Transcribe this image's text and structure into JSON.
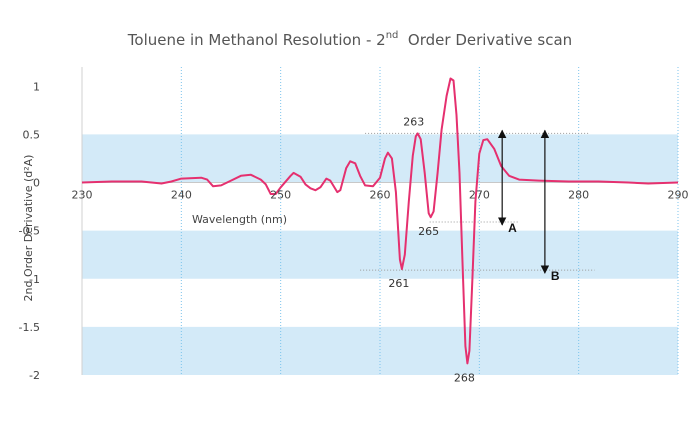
{
  "chart_data": {
    "type": "line",
    "title": "Toluene in Methanol Resolution - 2",
    "title_superscript": "nd",
    "title_suffix": "Order Derivative scan",
    "xlabel": "Wavelength (nm)",
    "ylabel": "2nd Order Derivative (d²A)",
    "xlim": [
      230,
      290
    ],
    "ylim": [
      -2,
      1.2
    ],
    "x_ticks": [
      "230",
      "240",
      "250",
      "260",
      "270",
      "280",
      "290"
    ],
    "y_ticks": [
      "1",
      "0.5",
      "0",
      "-0.5",
      "-1",
      "-1.5",
      "-2"
    ],
    "y_tick_values": [
      1,
      0.5,
      0,
      -0.5,
      -1,
      -1.5,
      -2
    ],
    "bands": [
      [
        0,
        0.5
      ],
      [
        -1,
        -0.5
      ],
      [
        -2,
        -1.5
      ]
    ],
    "grid": "vertical dotted",
    "line_color": "#e5306f",
    "band_color": "#d3eaf8",
    "series": [
      {
        "points": [
          [
            230,
            0
          ],
          [
            233,
            0.01
          ],
          [
            236,
            0.01
          ],
          [
            238,
            -0.01
          ],
          [
            239,
            0.01
          ],
          [
            240,
            0.04
          ],
          [
            242,
            0.05
          ],
          [
            242.6,
            0.03
          ],
          [
            243.2,
            -0.04
          ],
          [
            244,
            -0.03
          ],
          [
            245,
            0.02
          ],
          [
            246,
            0.07
          ],
          [
            247,
            0.08
          ],
          [
            248,
            0.03
          ],
          [
            248.5,
            -0.02
          ],
          [
            249,
            -0.12
          ],
          [
            249.5,
            -0.12
          ],
          [
            250,
            -0.05
          ],
          [
            251,
            0.07
          ],
          [
            251.3,
            0.1
          ],
          [
            252,
            0.06
          ],
          [
            252.5,
            -0.02
          ],
          [
            253,
            -0.06
          ],
          [
            253.5,
            -0.08
          ],
          [
            254,
            -0.05
          ],
          [
            254.6,
            0.04
          ],
          [
            255,
            0.02
          ],
          [
            255.7,
            -0.1
          ],
          [
            256,
            -0.08
          ],
          [
            256.6,
            0.15
          ],
          [
            257,
            0.22
          ],
          [
            257.5,
            0.2
          ],
          [
            258,
            0.07
          ],
          [
            258.5,
            -0.03
          ],
          [
            259.3,
            -0.04
          ],
          [
            260,
            0.05
          ],
          [
            260.5,
            0.25
          ],
          [
            260.8,
            0.31
          ],
          [
            261.2,
            0.25
          ],
          [
            261.6,
            -0.1
          ],
          [
            262,
            -0.8
          ],
          [
            262.2,
            -0.9
          ],
          [
            262.5,
            -0.75
          ],
          [
            262.9,
            -0.2
          ],
          [
            263.3,
            0.28
          ],
          [
            263.6,
            0.48
          ],
          [
            263.8,
            0.51
          ],
          [
            264.1,
            0.45
          ],
          [
            264.5,
            0.1
          ],
          [
            264.9,
            -0.32
          ],
          [
            265.1,
            -0.36
          ],
          [
            265.4,
            -0.3
          ],
          [
            265.8,
            0.1
          ],
          [
            266.2,
            0.55
          ],
          [
            266.7,
            0.9
          ],
          [
            267.1,
            1.08
          ],
          [
            267.4,
            1.06
          ],
          [
            267.7,
            0.7
          ],
          [
            268,
            0.1
          ],
          [
            268.3,
            -0.8
          ],
          [
            268.6,
            -1.7
          ],
          [
            268.8,
            -1.88
          ],
          [
            269,
            -1.75
          ],
          [
            269.3,
            -1.0
          ],
          [
            269.6,
            -0.2
          ],
          [
            270,
            0.3
          ],
          [
            270.4,
            0.44
          ],
          [
            270.8,
            0.45
          ],
          [
            271.5,
            0.35
          ],
          [
            272.2,
            0.17
          ],
          [
            273,
            0.07
          ],
          [
            274,
            0.03
          ],
          [
            276,
            0.02
          ],
          [
            279,
            0.01
          ],
          [
            282,
            0.01
          ],
          [
            285,
            0.0
          ],
          [
            287,
            -0.01
          ],
          [
            290,
            0
          ]
        ]
      }
    ],
    "annotations": [
      {
        "text": "263",
        "x": 263.7,
        "y": 0.51
      },
      {
        "text": "265",
        "x": 265.2,
        "y": -0.36
      },
      {
        "text": "261",
        "x": 262.2,
        "y": -0.9
      },
      {
        "text": "268",
        "x": 268.8,
        "y": -1.88
      }
    ],
    "arrows": [
      {
        "label": "A",
        "x": 272.3,
        "y_top": 0.51,
        "y_bottom": -0.41
      },
      {
        "label": "B",
        "x": 276.6,
        "y_top": 0.51,
        "y_bottom": -0.91
      }
    ]
  }
}
